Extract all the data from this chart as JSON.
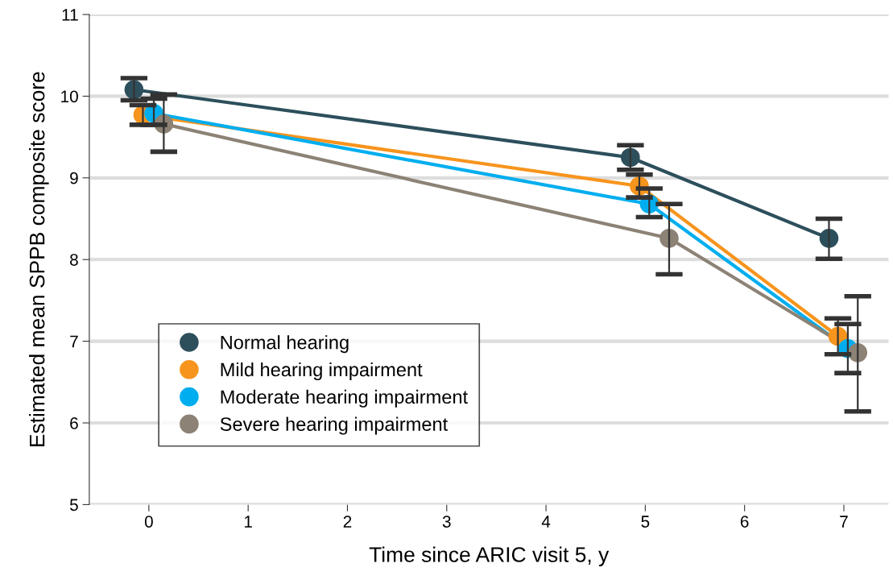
{
  "chart_data": {
    "type": "line",
    "xlabel": "Time since ARIC visit 5, y",
    "ylabel": "Estimated mean SPPB composite score",
    "xlim": [
      -0.6,
      7.45
    ],
    "xticks": [
      0,
      1,
      2,
      3,
      4,
      5,
      6,
      7
    ],
    "ylim": [
      5,
      11
    ],
    "yticks": [
      5,
      6,
      7,
      8,
      9,
      10,
      11
    ],
    "grid": "y",
    "legend": "bottom left",
    "marker": "circle",
    "line_style": "solid",
    "series": [
      {
        "name": "Normal hearing",
        "color": "#2d4f5c",
        "x": [
          -0.15,
          4.85,
          6.85
        ],
        "values": [
          10.08,
          9.25,
          8.26
        ],
        "errors": [
          [
            9.95,
            10.22
          ],
          [
            9.1,
            9.4
          ],
          [
            8.01,
            8.5
          ]
        ]
      },
      {
        "name": "Mild hearing impairment",
        "color": "#f7941d",
        "x": [
          -0.06,
          4.94,
          6.94
        ],
        "values": [
          9.77,
          8.9,
          7.06
        ],
        "errors": [
          [
            9.65,
            9.89
          ],
          [
            8.76,
            9.04
          ],
          [
            6.84,
            7.28
          ]
        ]
      },
      {
        "name": "Moderate hearing impairment",
        "color": "#00aeef",
        "x": [
          0.05,
          5.04,
          7.04
        ],
        "values": [
          9.79,
          8.68,
          6.91
        ],
        "errors": [
          [
            9.65,
            9.97
          ],
          [
            8.52,
            8.87
          ],
          [
            6.61,
            7.21
          ]
        ]
      },
      {
        "name": "Severe hearing impairment",
        "color": "#8c8275",
        "x": [
          0.15,
          5.24,
          7.14
        ],
        "values": [
          9.66,
          8.26,
          6.86
        ],
        "errors": [
          [
            9.32,
            10.02
          ],
          [
            7.82,
            8.68
          ],
          [
            6.14,
            7.55
          ]
        ]
      }
    ]
  }
}
